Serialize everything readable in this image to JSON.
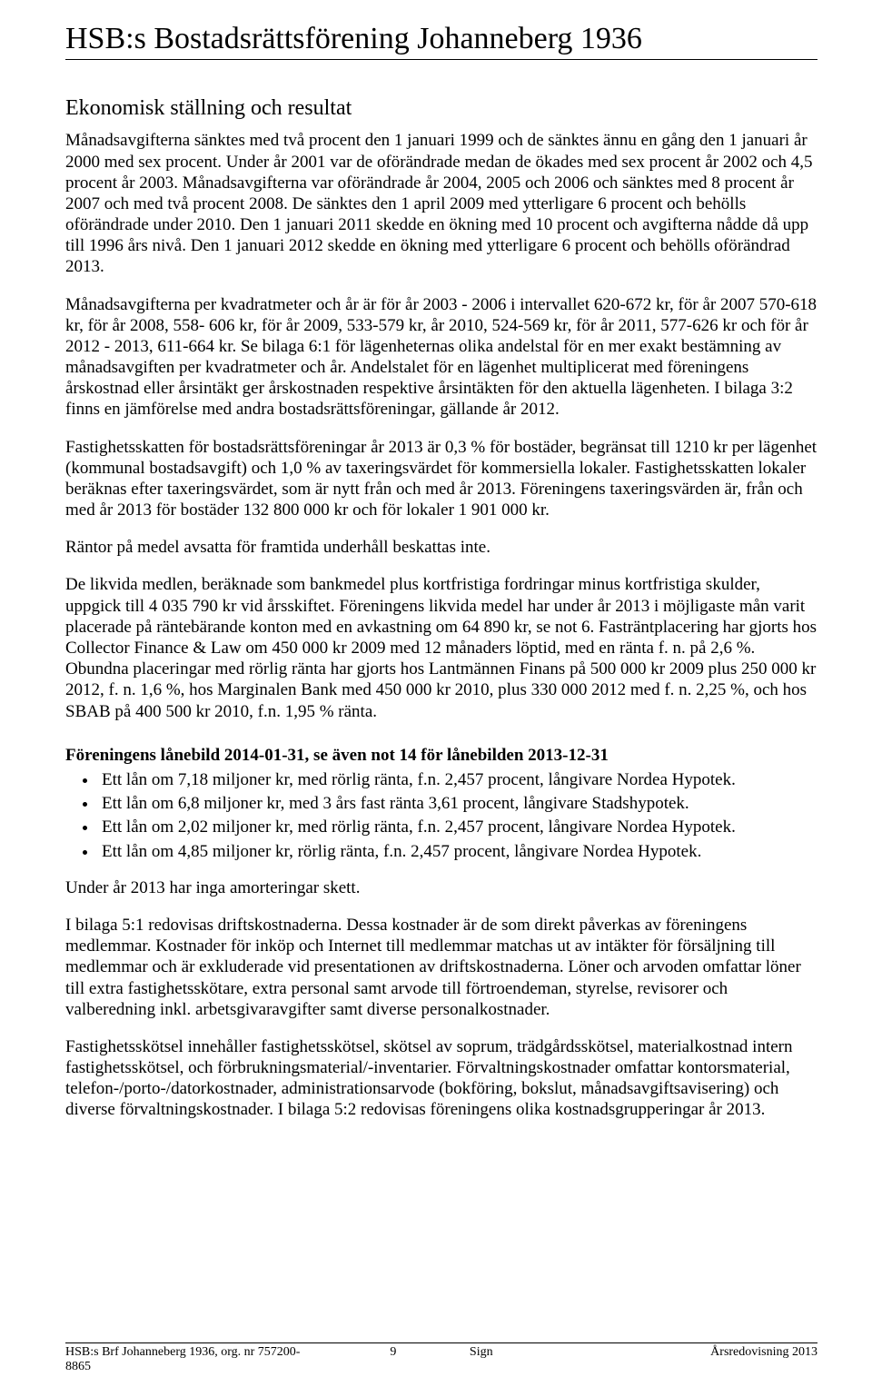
{
  "header": {
    "title": "HSB:s Bostadsrättsförening Johanneberg 1936"
  },
  "section": {
    "heading": "Ekonomisk ställning och resultat"
  },
  "paragraphs": {
    "p1": "Månadsavgifterna sänktes med två procent den 1 januari 1999 och de sänktes ännu en gång den 1 januari år 2000 med sex procent. Under år 2001 var de oförändrade medan de ökades med sex procent år 2002 och 4,5 procent år 2003. Månadsavgifterna var oförändrade år 2004, 2005 och 2006 och sänktes med 8 procent år 2007 och med två procent 2008. De sänktes den 1 april 2009 med ytterligare 6 procent och behölls oförändrade under 2010. Den 1 januari 2011 skedde en ökning med 10 procent och avgifterna nådde då upp till 1996 års nivå. Den 1 januari 2012 skedde en ökning med ytterligare 6 procent och behölls oförändrad 2013.",
    "p2": "Månadsavgifterna per kvadratmeter och år är för år 2003 - 2006 i intervallet 620-672 kr, för år 2007 570-618 kr, för år 2008, 558- 606 kr, för år 2009, 533-579 kr, år 2010, 524-569 kr, för år 2011, 577-626 kr och för år 2012 - 2013, 611-664 kr. Se bilaga 6:1 för lägenheternas olika andelstal för en mer exakt bestämning av månadsavgiften per kvadratmeter och år. Andelstalet för en lägenhet multiplicerat med föreningens årskostnad eller årsintäkt ger årskostnaden respektive årsintäkten för den aktuella lägenheten. I bilaga 3:2 finns en jämförelse med andra bostadsrättsföreningar, gällande år 2012.",
    "p3": "Fastighetsskatten för bostadsrättsföreningar år 2013 är 0,3 % för bostäder, begränsat till 1210 kr per lägenhet (kommunal bostadsavgift) och 1,0 % av taxeringsvärdet för kommersiella lokaler. Fastighetsskatten lokaler beräknas efter taxeringsvärdet, som är nytt från och med år 2013. Föreningens taxeringsvärden är, från och med år 2013 för bostäder 132 800 000 kr och för lokaler 1 901 000 kr.",
    "p4": "Räntor på medel avsatta för framtida underhåll beskattas inte.",
    "p5": "De likvida medlen, beräknade som bankmedel plus kortfristiga fordringar minus kortfristiga skulder, uppgick till 4 035 790 kr vid årsskiftet. Föreningens likvida medel har under år 2013 i möjligaste mån varit placerade på räntebärande konton med en avkastning om 64 890 kr, se not 6. Fasträntplacering har gjorts hos Collector Finance & Law om 450 000 kr 2009 med 12 månaders löptid, med en ränta f. n. på 2,6 %. Obundna placeringar med rörlig ränta har gjorts hos Lantmännen Finans på 500 000 kr 2009 plus 250 000 kr 2012, f. n. 1,6 %, hos Marginalen Bank med 450 000 kr 2010, plus 330 000 2012 med f. n. 2,25 %, och hos SBAB på 400 500 kr 2010, f.n. 1,95 % ränta."
  },
  "loans": {
    "heading": "Föreningens lånebild 2014-01-31, se även not 14 för lånebilden 2013-12-31",
    "items": [
      "Ett lån om 7,18 miljoner kr, med rörlig ränta, f.n. 2,457 procent, långivare Nordea Hypotek.",
      "Ett lån om 6,8 miljoner kr, med 3 års fast ränta 3,61 procent, långivare Stadshypotek.",
      "Ett lån om 2,02 miljoner kr, med rörlig ränta, f.n. 2,457 procent, långivare Nordea Hypotek.",
      "Ett lån om 4,85 miljoner kr, rörlig ränta, f.n. 2,457 procent, långivare Nordea Hypotek."
    ],
    "after": "Under år 2013 har inga amorteringar skett."
  },
  "closing": {
    "p1": "I bilaga 5:1 redovisas driftskostnaderna. Dessa kostnader är de som direkt påverkas av föreningens medlemmar. Kostnader för inköp och Internet till medlemmar matchas ut av intäkter för försäljning till medlemmar och är exkluderade vid presentationen av driftskostnaderna. Löner och arvoden omfattar löner till extra fastighetsskötare, extra personal samt arvode till förtroendeman, styrelse, revisorer och valberedning inkl. arbetsgivaravgifter samt diverse personalkostnader.",
    "p2": "Fastighetsskötsel innehåller fastighetsskötsel, skötsel av soprum, trädgårdsskötsel, materialkostnad intern fastighetsskötsel, och förbrukningsmaterial/-inventarier. Förvaltningskostnader omfattar kontorsmaterial, telefon-/porto-/datorkostnader, administrationsarvode (bokföring, bokslut, månadsavgiftsavisering) och diverse förvaltningskostnader. I bilaga 5:2 redovisas föreningens olika kostnadsgrupperingar år 2013."
  },
  "footer": {
    "left": "HSB:s Brf Johanneberg 1936, org. nr 757200-8865",
    "center_prefix": "9",
    "center_suffix": "Sign",
    "right": "Årsredovisning 2013"
  }
}
